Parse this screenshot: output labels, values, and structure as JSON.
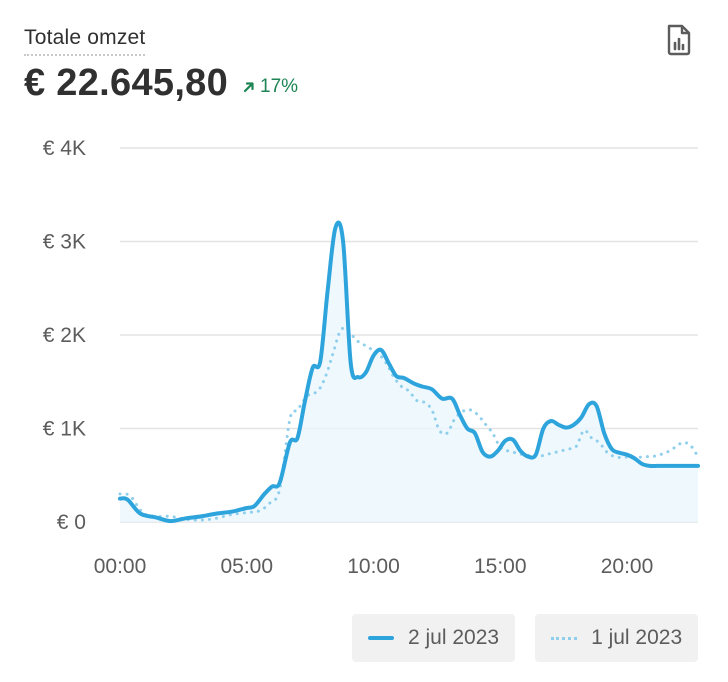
{
  "header": {
    "title": "Totale omzet",
    "total": "€ 22.645,80",
    "change": "17%"
  },
  "colors": {
    "current": "#2ea4dc",
    "previous": "#8fcfec",
    "grid": "#e3e3e3",
    "change_positive": "#1e8454"
  },
  "icons": {
    "report": "report-icon",
    "trend": "arrow-up-right-icon"
  },
  "chart_data": {
    "type": "line",
    "y_ticks": [
      "€ 4K",
      "€ 3K",
      "€ 2K",
      "€ 1K",
      "€ 0"
    ],
    "y_tick_values": [
      4000,
      3000,
      2000,
      1000,
      0
    ],
    "x_ticks": [
      "00:00",
      "05:00",
      "10:00",
      "15:00",
      "20:00"
    ],
    "x_tick_values": [
      0,
      5,
      10,
      15,
      20
    ],
    "xlim": [
      0,
      22.8
    ],
    "ylim": [
      0,
      4000
    ],
    "grid": true,
    "legend_position": "bottom-right",
    "series": [
      {
        "name": "2 jul 2023",
        "style": "solid",
        "x": [
          0,
          0.3,
          0.8,
          1.4,
          2.0,
          2.6,
          3.2,
          3.8,
          4.4,
          5.0,
          5.3,
          5.7,
          6.0,
          6.3,
          6.7,
          7.0,
          7.3,
          7.6,
          7.9,
          8.2,
          8.5,
          8.8,
          9.1,
          9.4,
          9.7,
          10.0,
          10.3,
          10.6,
          10.9,
          11.2,
          11.6,
          11.9,
          12.3,
          12.7,
          13.1,
          13.4,
          13.7,
          14.0,
          14.3,
          14.6,
          14.9,
          15.2,
          15.5,
          15.8,
          16.1,
          16.4,
          16.7,
          17.0,
          17.3,
          17.6,
          17.9,
          18.2,
          18.5,
          18.8,
          19.1,
          19.4,
          19.7,
          20.0,
          20.3,
          20.6,
          20.9,
          21.2,
          21.5,
          21.8,
          22.1,
          22.4,
          22.8
        ],
        "y": [
          250,
          240,
          90,
          50,
          10,
          40,
          60,
          90,
          110,
          150,
          170,
          300,
          380,
          420,
          850,
          900,
          1300,
          1650,
          1720,
          2500,
          3150,
          3000,
          1700,
          1550,
          1600,
          1780,
          1840,
          1700,
          1560,
          1540,
          1480,
          1450,
          1420,
          1320,
          1320,
          1150,
          1000,
          950,
          750,
          700,
          760,
          870,
          880,
          760,
          700,
          720,
          1000,
          1080,
          1040,
          1010,
          1040,
          1120,
          1260,
          1240,
          950,
          780,
          740,
          720,
          680,
          620,
          600,
          600,
          600,
          600,
          600,
          600,
          600
        ],
        "values_note": ""
      },
      {
        "name": "1 jul 2023",
        "style": "dotted",
        "x": [
          0,
          0.4,
          0.9,
          1.4,
          2.0,
          2.6,
          3.2,
          3.8,
          4.4,
          5.0,
          5.5,
          5.9,
          6.3,
          6.7,
          7.0,
          7.4,
          7.8,
          8.1,
          8.4,
          8.7,
          9.0,
          9.3,
          9.6,
          9.9,
          10.2,
          10.5,
          10.8,
          11.1,
          11.4,
          11.7,
          12.0,
          12.3,
          12.6,
          12.9,
          13.2,
          13.5,
          13.8,
          14.1,
          14.4,
          14.7,
          15.0,
          15.3,
          15.6,
          15.9,
          16.2,
          16.5,
          16.8,
          17.1,
          17.4,
          17.7,
          18.0,
          18.3,
          18.6,
          18.9,
          19.2,
          19.5,
          19.8,
          20.1,
          20.4,
          20.7,
          21.0,
          21.3,
          21.6,
          21.9,
          22.2,
          22.5,
          22.8
        ],
        "y": [
          300,
          280,
          100,
          60,
          60,
          30,
          20,
          40,
          80,
          100,
          120,
          200,
          350,
          1100,
          1200,
          1350,
          1400,
          1550,
          1800,
          2050,
          2050,
          1950,
          1900,
          1850,
          1800,
          1700,
          1550,
          1450,
          1400,
          1300,
          1280,
          1200,
          980,
          950,
          1100,
          1180,
          1200,
          1150,
          1050,
          950,
          800,
          760,
          740,
          720,
          710,
          700,
          720,
          740,
          760,
          780,
          810,
          980,
          900,
          850,
          750,
          700,
          690,
          700,
          690,
          700,
          700,
          720,
          750,
          800,
          850,
          820,
          700
        ],
        "values_note": ""
      }
    ]
  },
  "legend": {
    "items": [
      {
        "label": "2 jul 2023",
        "style": "solid"
      },
      {
        "label": "1 jul 2023",
        "style": "dotted"
      }
    ]
  }
}
